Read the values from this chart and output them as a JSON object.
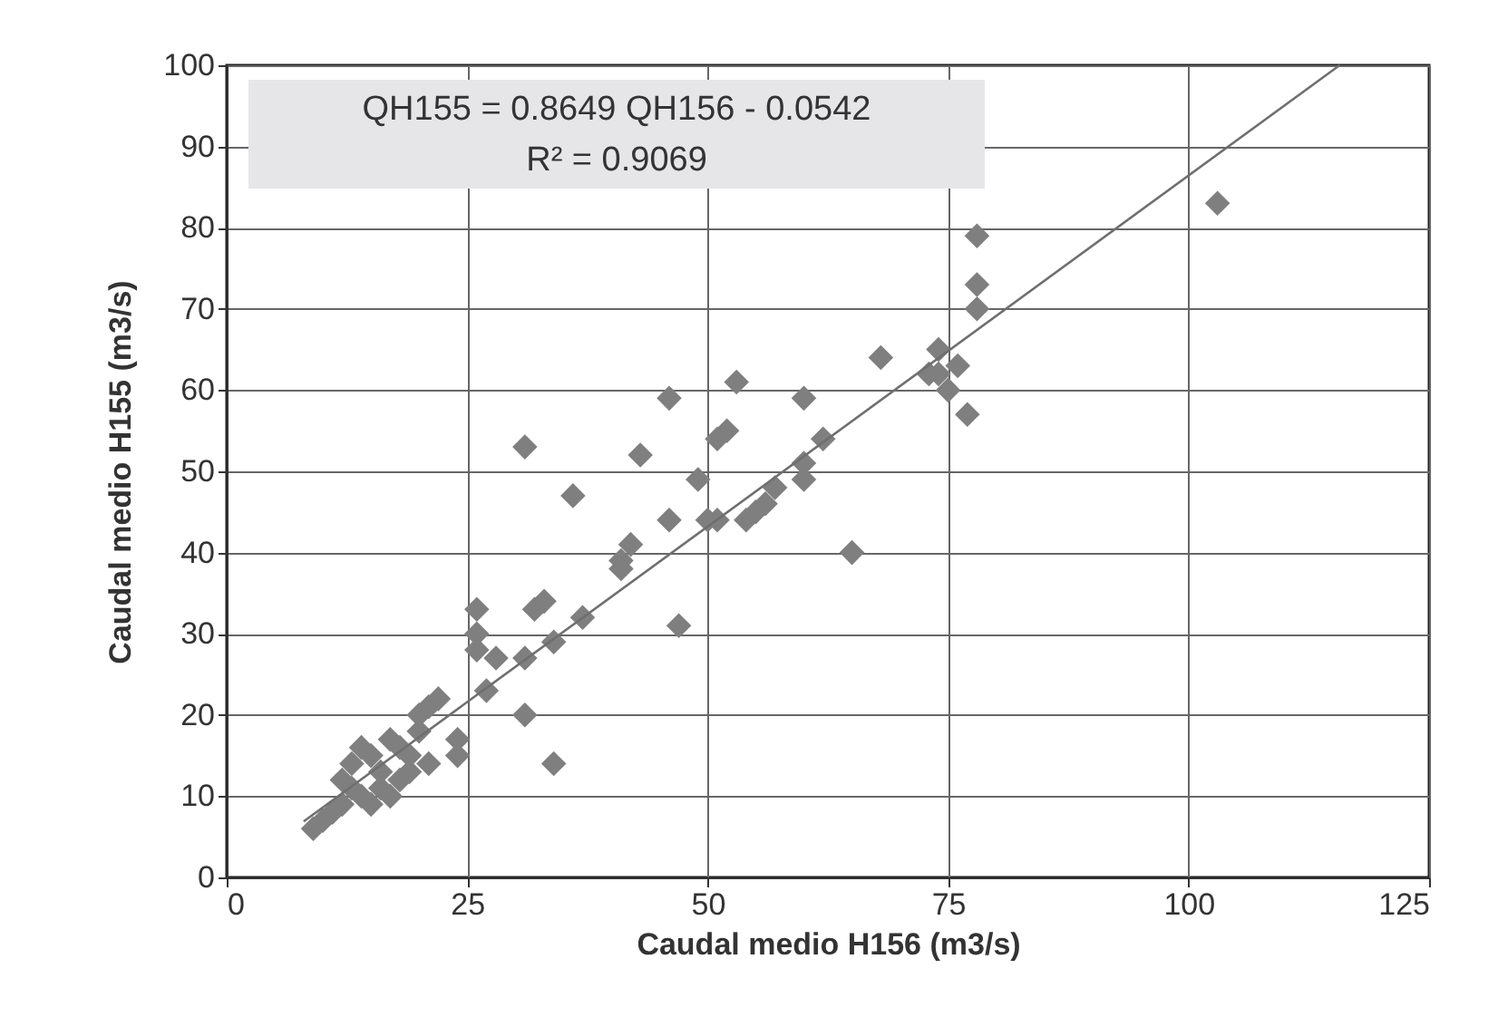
{
  "chart_data": {
    "type": "scatter",
    "xlabel": "Caudal medio H156 (m3/s)",
    "ylabel": "Caudal medio H155 (m3/s)",
    "annotations": [
      "QH155 = 0.8649 QH156 - 0.0542",
      "R² = 0.9069"
    ],
    "xlim": [
      0,
      125
    ],
    "xticks": [
      0,
      25,
      50,
      75,
      100,
      125
    ],
    "ylim": [
      0,
      100
    ],
    "yticks": [
      0,
      10,
      20,
      30,
      40,
      50,
      60,
      70,
      80,
      90,
      100
    ],
    "grid": true,
    "marker": "diamond",
    "series": [
      {
        "color": "#7f7f7f",
        "x": [
          103,
          78,
          78,
          78,
          76,
          77,
          74,
          74,
          75,
          73,
          68,
          65,
          62,
          60,
          60,
          60,
          57,
          56,
          55,
          54,
          53,
          52,
          51,
          51,
          50,
          49,
          47,
          46,
          46,
          43,
          42,
          41,
          41,
          37,
          36,
          34,
          34,
          33,
          32,
          31,
          31,
          31,
          28,
          27,
          26,
          26,
          26,
          24,
          24,
          22,
          21,
          20,
          21,
          19,
          18,
          17,
          16,
          15,
          14,
          13,
          13,
          12,
          11,
          10,
          9,
          15,
          17,
          18,
          14,
          16,
          12,
          19,
          20
        ],
        "values": [
          83,
          79,
          73,
          70,
          63,
          57,
          65,
          62,
          60,
          62,
          64,
          40,
          54,
          59,
          51,
          49,
          48,
          46,
          45,
          44,
          61,
          55,
          54,
          44,
          44,
          49,
          31,
          59,
          44,
          52,
          41,
          39,
          38,
          32,
          47,
          29,
          14,
          34,
          33,
          53,
          20,
          27,
          27,
          23,
          33,
          30,
          28,
          17,
          15,
          22,
          21,
          18,
          14,
          15,
          16,
          17,
          13,
          15,
          16,
          14,
          11,
          9,
          8,
          7,
          6,
          9,
          10,
          12,
          10,
          11,
          12,
          13,
          20
        ]
      },
      {
        "type": "line",
        "color": "#6f6f6f",
        "x": [
          8,
          115.7
        ],
        "values": [
          6.9,
          100
        ],
        "line_style": "solid",
        "marker": "none"
      }
    ]
  }
}
